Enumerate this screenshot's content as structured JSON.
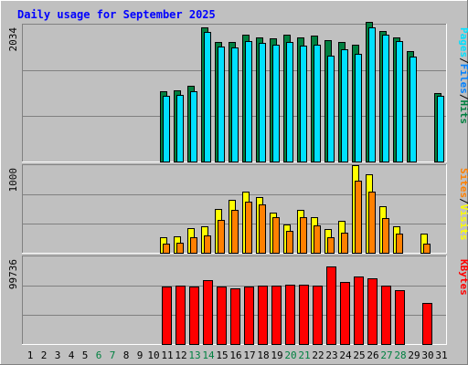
{
  "chart_data": [
    {
      "type": "bar",
      "title": "Daily usage for September 2025",
      "categories": [
        "1",
        "2",
        "3",
        "4",
        "5",
        "6",
        "7",
        "8",
        "9",
        "10",
        "11",
        "12",
        "13",
        "14",
        "15",
        "16",
        "17",
        "18",
        "19",
        "20",
        "21",
        "22",
        "23",
        "24",
        "25",
        "26",
        "27",
        "28",
        "29",
        "30",
        "31"
      ],
      "weekend_days": [
        "6",
        "7",
        "13",
        "14",
        "20",
        "21",
        "27",
        "28"
      ],
      "ylim": [
        0,
        2034
      ],
      "ytick_label": "2034",
      "side_label": [
        "Pages",
        "/",
        "Files",
        "/",
        "Hits"
      ],
      "series": [
        {
          "name": "Hits",
          "color": "#008040",
          "values": [
            0,
            0,
            0,
            0,
            0,
            0,
            0,
            0,
            0,
            0,
            1050,
            1060,
            1120,
            2000,
            1780,
            1770,
            1880,
            1840,
            1830,
            1880,
            1850,
            1870,
            1800,
            1770,
            1740,
            2080,
            1940,
            1850,
            1640,
            0,
            1020
          ]
        },
        {
          "name": "Files",
          "color": "#0080FF",
          "values": [
            0,
            0,
            0,
            0,
            0,
            0,
            0,
            0,
            0,
            0,
            0,
            0,
            0,
            0,
            0,
            0,
            0,
            0,
            0,
            0,
            0,
            0,
            0,
            0,
            0,
            0,
            0,
            0,
            0,
            0,
            0
          ]
        },
        {
          "name": "Pages",
          "color": "#00E0FF",
          "values": [
            0,
            0,
            0,
            0,
            0,
            0,
            0,
            0,
            0,
            0,
            970,
            990,
            1050,
            1930,
            1710,
            1700,
            1790,
            1760,
            1740,
            1770,
            1720,
            1740,
            1570,
            1670,
            1600,
            1990,
            1880,
            1790,
            1560,
            0,
            970
          ]
        }
      ],
      "x_axis": "days"
    },
    {
      "type": "bar",
      "ylim": [
        0,
        1000
      ],
      "ytick_label": "1000",
      "side_label": [
        "Sites",
        "/",
        "Visits"
      ],
      "series": [
        {
          "name": "Visits",
          "color": "#FFFF00",
          "values": [
            0,
            0,
            0,
            0,
            0,
            0,
            0,
            0,
            0,
            0,
            180,
            190,
            280,
            300,
            500,
            600,
            700,
            640,
            460,
            320,
            490,
            410,
            270,
            360,
            1000,
            900,
            530,
            300,
            0,
            220,
            0
          ]
        },
        {
          "name": "Sites",
          "color": "#FF8000",
          "values": [
            0,
            0,
            0,
            0,
            0,
            0,
            0,
            0,
            0,
            0,
            100,
            110,
            180,
            200,
            380,
            490,
            580,
            550,
            410,
            250,
            410,
            310,
            180,
            230,
            820,
            700,
            400,
            220,
            0,
            100,
            0
          ]
        }
      ]
    },
    {
      "type": "bar",
      "ylim": [
        0,
        99736
      ],
      "ytick_label": "99736",
      "side_label": [
        "KBytes"
      ],
      "series": [
        {
          "name": "KBytes",
          "color": "#FF0000",
          "values": [
            0,
            0,
            0,
            0,
            0,
            0,
            0,
            0,
            0,
            0,
            65000,
            67000,
            65000,
            73000,
            65000,
            63000,
            65000,
            66000,
            67000,
            68000,
            68000,
            66000,
            88000,
            71000,
            77000,
            75000,
            67000,
            61000,
            0,
            47000,
            0
          ]
        }
      ]
    }
  ],
  "colors": {
    "background": "#C0C0C0",
    "title": "#0000FF",
    "weekday_label": "#000000",
    "weekend_label": "#008040",
    "gridline": "#808080",
    "bar_outline": "#000000"
  }
}
